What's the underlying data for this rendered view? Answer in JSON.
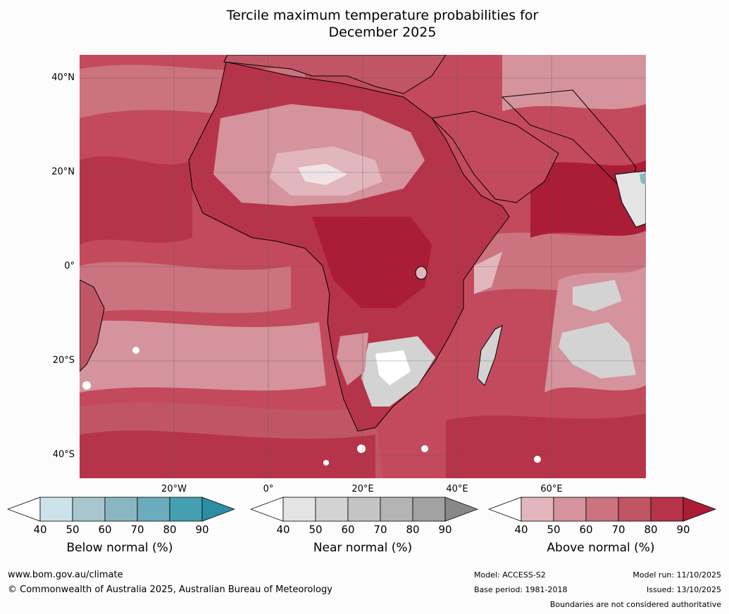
{
  "title_line1": "Tercile maximum temperature probabilities for",
  "title_line2": "December 2025",
  "lat_labels": [
    "40°N",
    "20°N",
    "0°",
    "20°S",
    "40°S"
  ],
  "lon_labels": [
    "20°W",
    "0°",
    "20°E",
    "40°E",
    "60°E"
  ],
  "colorbars": [
    {
      "label": "Below normal (%)",
      "ticks": [
        "40",
        "50",
        "60",
        "70",
        "80",
        "90"
      ],
      "colors": [
        "#ffffff",
        "#cde3ea",
        "#a7c6cd",
        "#89b6c1",
        "#6aacbb",
        "#459fb1",
        "#2b8ea4"
      ]
    },
    {
      "label": "Near normal (%)",
      "ticks": [
        "40",
        "50",
        "60",
        "70",
        "80",
        "90"
      ],
      "colors": [
        "#ffffff",
        "#e4e4e4",
        "#d3d3d3",
        "#c4c4c4",
        "#b4b4b4",
        "#a2a2a2",
        "#888888"
      ]
    },
    {
      "label": "Above normal (%)",
      "ticks": [
        "40",
        "50",
        "60",
        "70",
        "80",
        "90"
      ],
      "colors": [
        "#ffffff",
        "#e2b6bd",
        "#d4939d",
        "#cb737e",
        "#c05665",
        "#b6344a",
        "#ab1c37"
      ]
    }
  ],
  "footer": {
    "url": "www.bom.gov.au/climate",
    "copyright": "© Commonwealth of Australia 2025, Australian Bureau of Meteorology",
    "model": "Model: ACCESS-S2",
    "base_period": "Base period: 1981-2018",
    "model_run": "Model run: 11/10/2025",
    "issued": "Issued: 13/10/2025",
    "disclaimer": "Boundaries are not considered authoritative"
  }
}
